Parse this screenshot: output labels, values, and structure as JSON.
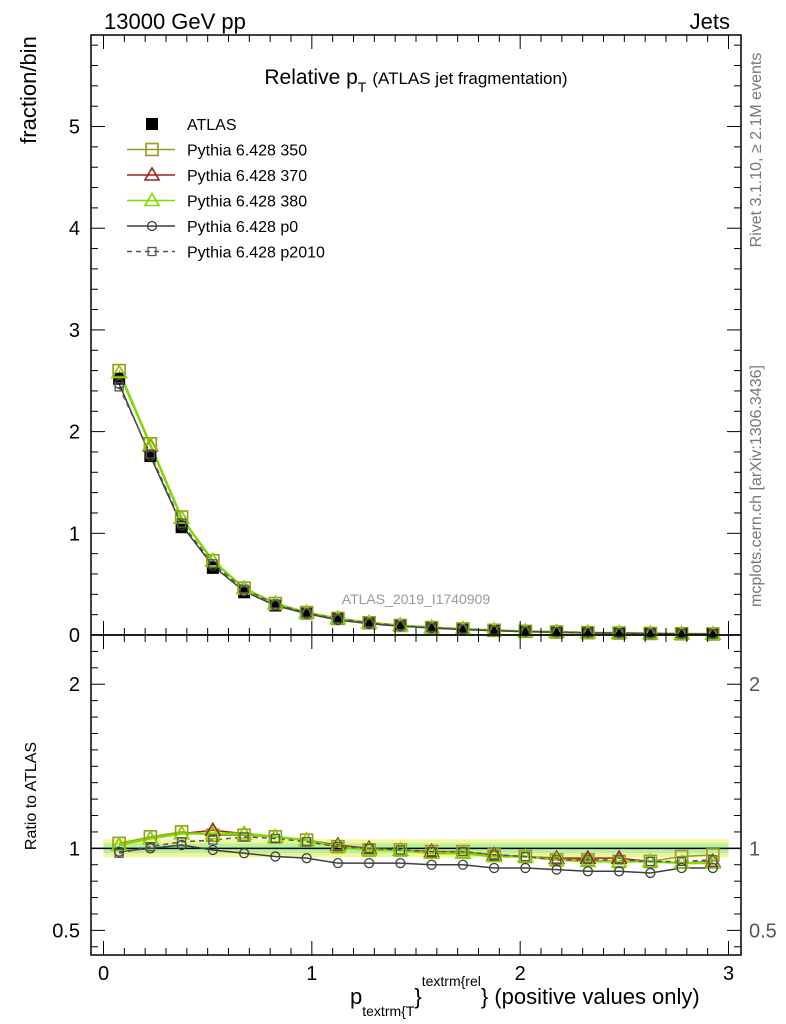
{
  "header": {
    "energy_label": "13000 GeV pp",
    "process_label": "Jets",
    "rivet_label": "Rivet 3.1.10, ≥ 2.1M events",
    "mcplots_label": "mcplots.cern.ch [arXiv:1306.3436]",
    "analysis_label": "ATLAS_2019_I1740909"
  },
  "chart_data": {
    "type": "line",
    "title_main": "Relative p",
    "title_sub": "T",
    "title_rest": "(ATLAS jet fragmentation)",
    "ylabel_top": "fraction/bin",
    "ylabel_bottom": "Ratio to ATLAS",
    "xlabel_main": "p",
    "xlabel_sub": "textrm{T",
    "xlabel_sup": "textrm{rel",
    "xlabel_rest": "} (positive values only)",
    "xlim": [
      -0.06,
      3.06
    ],
    "ylim_top": [
      0,
      5.9
    ],
    "ylim_ratio": [
      0.35,
      2.3
    ],
    "x_ticks": [
      "0",
      "1",
      "2",
      "3"
    ],
    "y_ticks_top": [
      "0",
      "1",
      "2",
      "3",
      "4",
      "5"
    ],
    "y_ticks_ratio": [
      "0.5",
      "1",
      "2"
    ],
    "x": [
      0.075,
      0.225,
      0.375,
      0.525,
      0.675,
      0.825,
      0.975,
      1.125,
      1.275,
      1.425,
      1.575,
      1.725,
      1.875,
      2.025,
      2.175,
      2.325,
      2.475,
      2.625,
      2.775,
      2.925
    ],
    "series": [
      {
        "name": "ATLAS",
        "color": "#000000",
        "marker": "square-filled",
        "line": "none",
        "values": [
          2.52,
          1.76,
          1.06,
          0.66,
          0.42,
          0.29,
          0.21,
          0.16,
          0.12,
          0.095,
          0.075,
          0.06,
          0.048,
          0.038,
          0.031,
          0.025,
          0.02,
          0.016,
          0.013,
          0.01
        ],
        "ratio": [
          1.0,
          1.0,
          1.0,
          1.0,
          1.0,
          1.0,
          1.0,
          1.0,
          1.0,
          1.0,
          1.0,
          1.0,
          1.0,
          1.0,
          1.0,
          1.0,
          1.0,
          1.0,
          1.0,
          1.0
        ]
      },
      {
        "name": "Pythia 6.428 350",
        "color": "#9a9a1e",
        "marker": "square-open",
        "line": "solid",
        "values": [
          2.6,
          1.88,
          1.16,
          0.73,
          0.46,
          0.31,
          0.22,
          0.163,
          0.12,
          0.094,
          0.073,
          0.059,
          0.046,
          0.036,
          0.029,
          0.023,
          0.019,
          0.015,
          0.012,
          0.01
        ],
        "ratio": [
          1.03,
          1.07,
          1.1,
          1.08,
          1.08,
          1.07,
          1.05,
          1.01,
          0.99,
          0.99,
          0.98,
          0.98,
          0.96,
          0.95,
          0.93,
          0.93,
          0.92,
          0.92,
          0.95,
          0.96
        ]
      },
      {
        "name": "Pythia 6.428 370",
        "color": "#a01f1f",
        "marker": "triangle-open",
        "line": "solid",
        "values": [
          2.58,
          1.86,
          1.15,
          0.73,
          0.46,
          0.31,
          0.22,
          0.163,
          0.12,
          0.095,
          0.074,
          0.059,
          0.046,
          0.036,
          0.029,
          0.024,
          0.019,
          0.015,
          0.012,
          0.009
        ],
        "ratio": [
          1.02,
          1.06,
          1.09,
          1.11,
          1.09,
          1.07,
          1.05,
          1.02,
          1.0,
          0.99,
          0.98,
          0.97,
          0.96,
          0.95,
          0.94,
          0.94,
          0.94,
          0.92,
          0.91,
          0.92
        ]
      },
      {
        "name": "Pythia 6.428 380",
        "color": "#7fdb00",
        "marker": "triangle-open",
        "line": "solid",
        "values": [
          2.58,
          1.87,
          1.15,
          0.73,
          0.46,
          0.31,
          0.22,
          0.163,
          0.12,
          0.094,
          0.073,
          0.058,
          0.046,
          0.036,
          0.029,
          0.023,
          0.019,
          0.015,
          0.012,
          0.009
        ],
        "ratio": [
          1.02,
          1.06,
          1.09,
          1.09,
          1.09,
          1.07,
          1.05,
          1.01,
          0.99,
          0.99,
          0.97,
          0.97,
          0.95,
          0.95,
          0.93,
          0.92,
          0.92,
          0.92,
          0.91,
          0.91
        ]
      },
      {
        "name": "Pythia 6.428 p0",
        "color": "#3f3f3f",
        "marker": "circle-open",
        "line": "solid",
        "values": [
          2.47,
          1.76,
          1.08,
          0.68,
          0.43,
          0.29,
          0.21,
          0.148,
          0.11,
          0.087,
          0.068,
          0.054,
          0.042,
          0.033,
          0.027,
          0.021,
          0.017,
          0.014,
          0.011,
          0.009
        ],
        "ratio": [
          0.98,
          1.0,
          1.02,
          0.99,
          0.97,
          0.95,
          0.94,
          0.91,
          0.91,
          0.91,
          0.9,
          0.9,
          0.88,
          0.88,
          0.87,
          0.86,
          0.86,
          0.85,
          0.88,
          0.88
        ]
      },
      {
        "name": "Pythia 6.428 p2010",
        "color": "#555555",
        "marker": "square-open-small",
        "line": "dashed",
        "values": [
          2.44,
          1.78,
          1.1,
          0.7,
          0.45,
          0.305,
          0.215,
          0.16,
          0.119,
          0.093,
          0.073,
          0.058,
          0.046,
          0.036,
          0.029,
          0.023,
          0.019,
          0.015,
          0.012,
          0.01
        ],
        "ratio": [
          0.97,
          1.01,
          1.04,
          1.05,
          1.07,
          1.06,
          1.04,
          1.01,
          1.0,
          0.99,
          0.98,
          0.98,
          0.96,
          0.95,
          0.93,
          0.93,
          0.93,
          0.92,
          0.92,
          0.93
        ]
      }
    ]
  }
}
